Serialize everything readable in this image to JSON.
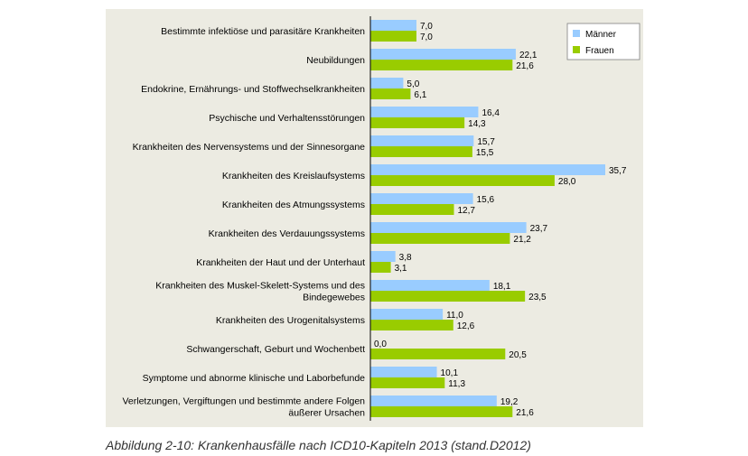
{
  "chart_data": {
    "type": "bar",
    "orientation": "horizontal",
    "categories": [
      [
        "Bestimmte infektiöse und parasitäre Krankheiten"
      ],
      [
        "Neubildungen"
      ],
      [
        "Endokrine, Ernährungs- und Stoffwechselkrankheiten"
      ],
      [
        "Psychische und Verhaltensstörungen"
      ],
      [
        "Krankheiten des Nervensystems und der Sinnesorgane"
      ],
      [
        "Krankheiten des Kreislaufsystems"
      ],
      [
        "Krankheiten des Atmungssystems"
      ],
      [
        "Krankheiten des Verdauungssystems"
      ],
      [
        "Krankheiten der Haut und der Unterhaut"
      ],
      [
        "Krankheiten des Muskel-Skelett-Systems und des",
        "Bindegewebes"
      ],
      [
        "Krankheiten des Urogenitalsystems"
      ],
      [
        "Schwangerschaft, Geburt und Wochenbett"
      ],
      [
        "Symptome und abnorme klinische und Laborbefunde"
      ],
      [
        "Verletzungen, Vergiftungen und bestimmte andere Folgen",
        "äußerer Ursachen"
      ]
    ],
    "series": [
      {
        "name": "Männer",
        "color": "#99ccff",
        "values": [
          7.0,
          22.1,
          5.0,
          16.4,
          15.7,
          35.7,
          15.6,
          23.7,
          3.8,
          18.1,
          11.0,
          0.0,
          10.1,
          19.2
        ],
        "labels": [
          "7,0",
          "22,1",
          "5,0",
          "16,4",
          "15,7",
          "35,7",
          "15,6",
          "23,7",
          "3,8",
          "18,1",
          "11,0",
          "0,0",
          "10,1",
          "19,2"
        ]
      },
      {
        "name": "Frauen",
        "color": "#99cc00",
        "values": [
          7.0,
          21.6,
          6.1,
          14.3,
          15.5,
          28.0,
          12.7,
          21.2,
          3.1,
          23.5,
          12.6,
          20.5,
          11.3,
          21.6
        ],
        "labels": [
          "7,0",
          "21,6",
          "6,1",
          "14,3",
          "15,5",
          "28,0",
          "12,7",
          "21,2",
          "3,1",
          "23,5",
          "12,6",
          "20,5",
          "11,3",
          "21,6"
        ]
      }
    ],
    "xlim": [
      0,
      35.7
    ],
    "grid": false,
    "legend_position": "top-right",
    "background_color": "#ecebe2"
  },
  "caption": "Abbildung 2-10:   Krankenhausfälle nach ICD10-Kapiteln 2013 (stand.D2012)"
}
